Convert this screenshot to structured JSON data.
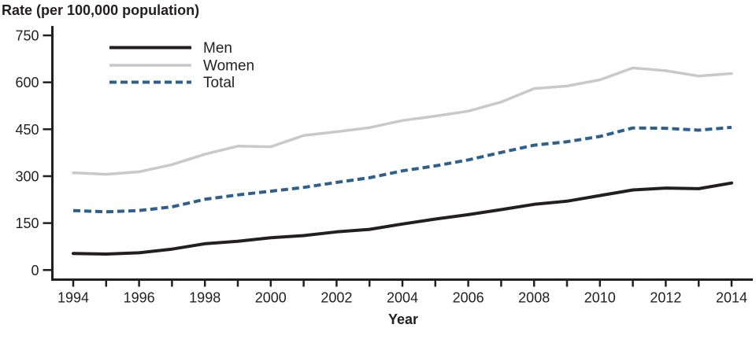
{
  "page": {
    "background": "#ffffff",
    "text_color": "#231f20"
  },
  "chart_data": {
    "type": "line",
    "title": "Rate (per 100,000 population)",
    "xlabel": "Year",
    "ylabel": "Rate (per 100,000 population)",
    "grid": false,
    "legend_position": "top-left-inside",
    "xlim": [
      1994,
      2014
    ],
    "ylim": [
      0,
      750
    ],
    "y_ticks": [
      0,
      150,
      300,
      450,
      600,
      750
    ],
    "x_tick_years": [
      1994,
      1995,
      1996,
      1997,
      1998,
      1999,
      2000,
      2001,
      2002,
      2003,
      2004,
      2005,
      2006,
      2007,
      2008,
      2009,
      2010,
      2011,
      2012,
      2013,
      2014
    ],
    "x_tick_labels": [
      "1994",
      "1996",
      "1998",
      "2000",
      "2002",
      "2004",
      "2006",
      "2008",
      "2010",
      "2012",
      "2014"
    ],
    "x": [
      1994,
      1995,
      1996,
      1997,
      1998,
      1999,
      2000,
      2001,
      2002,
      2003,
      2004,
      2005,
      2006,
      2007,
      2008,
      2009,
      2010,
      2011,
      2012,
      2013,
      2014
    ],
    "series": [
      {
        "name": "Men",
        "color": "#231f20",
        "line_style": "solid",
        "values": [
          53,
          51,
          55,
          67,
          84,
          92,
          103,
          110,
          122,
          130,
          147,
          163,
          177,
          193,
          210,
          220,
          238,
          256,
          262,
          260,
          278
        ]
      },
      {
        "name": "Women",
        "color": "#c8c9cb",
        "line_style": "solid",
        "values": [
          311,
          306,
          314,
          337,
          370,
          396,
          394,
          430,
          442,
          455,
          478,
          492,
          508,
          537,
          580,
          588,
          608,
          646,
          637,
          620,
          628
        ]
      },
      {
        "name": "Total",
        "color": "#2e5f8f",
        "line_style": "dashed",
        "values": [
          190,
          186,
          190,
          202,
          226,
          240,
          252,
          264,
          280,
          295,
          317,
          333,
          352,
          376,
          399,
          410,
          427,
          454,
          453,
          447,
          456
        ]
      }
    ]
  }
}
